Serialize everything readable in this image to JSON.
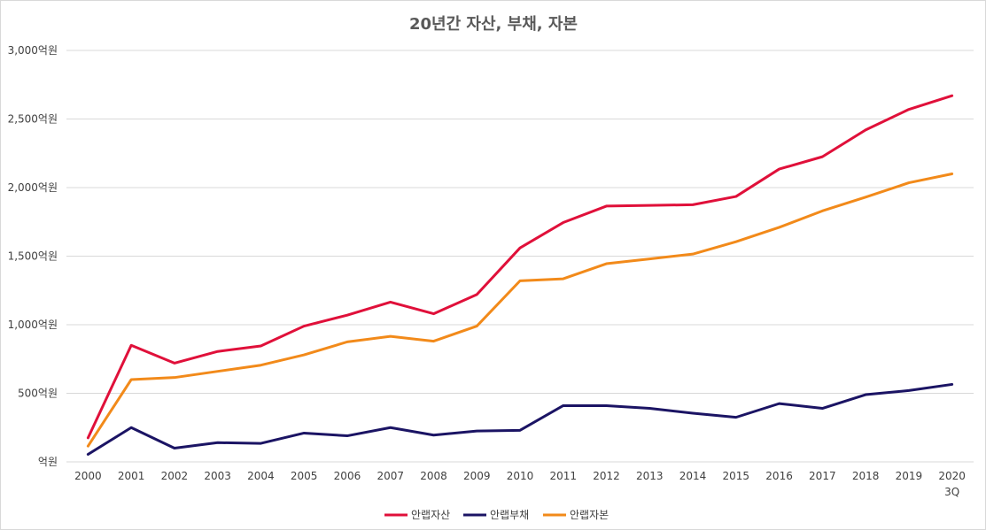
{
  "chart_data": {
    "type": "line",
    "title": "20년간 자산, 부채, 자본",
    "xlabel": "",
    "ylabel": "",
    "categories": [
      "2000",
      "2001",
      "2002",
      "2003",
      "2004",
      "2005",
      "2006",
      "2007",
      "2008",
      "2009",
      "2010",
      "2011",
      "2012",
      "2013",
      "2014",
      "2015",
      "2016",
      "2017",
      "2018",
      "2019",
      "2020"
    ],
    "category_sublabels": {
      "2020": "3Q"
    },
    "ylim": [
      0,
      3000
    ],
    "yticks": [
      0,
      500,
      1000,
      1500,
      2000,
      2500,
      3000
    ],
    "ytick_labels": [
      "억원",
      "500억원",
      "1,000억원",
      "1,500억원",
      "2,000억원",
      "2,500억원",
      "3,000억원"
    ],
    "grid": true,
    "legend_position": "bottom",
    "series": [
      {
        "name": "안랩자산",
        "color": "#e0103a",
        "values": [
          175,
          850,
          720,
          805,
          845,
          990,
          1070,
          1165,
          1080,
          1220,
          1560,
          1745,
          1865,
          1870,
          1875,
          1935,
          2135,
          2225,
          2420,
          2570,
          2670
        ]
      },
      {
        "name": "안랩부채",
        "color": "#1b1464",
        "values": [
          55,
          250,
          100,
          140,
          135,
          210,
          190,
          250,
          195,
          225,
          230,
          410,
          410,
          390,
          355,
          325,
          425,
          390,
          490,
          520,
          565
        ]
      },
      {
        "name": "안랩자본",
        "color": "#f28a1a",
        "values": [
          115,
          600,
          615,
          660,
          705,
          780,
          875,
          915,
          880,
          990,
          1320,
          1335,
          1445,
          1480,
          1515,
          1605,
          1710,
          1830,
          1930,
          2035,
          2100
        ]
      }
    ]
  }
}
